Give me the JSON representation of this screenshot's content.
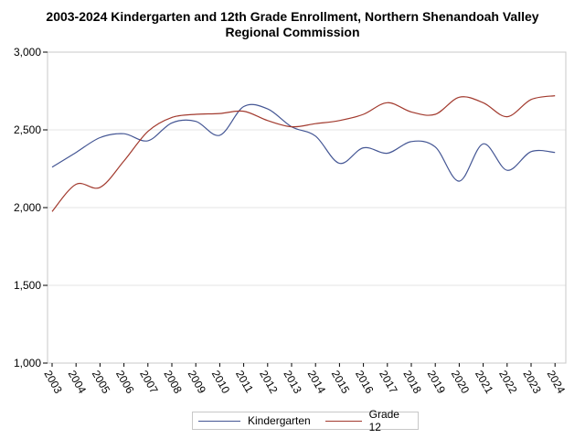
{
  "chart_data": {
    "type": "line",
    "title_lines": [
      "2003-2024 Kindergarten and 12th Grade Enrollment, Northern Shenandoah Valley",
      "Regional Commission"
    ],
    "xlabel": "",
    "ylabel": "",
    "x": [
      "2003",
      "2004",
      "2005",
      "2006",
      "2007",
      "2008",
      "2009",
      "2010",
      "2011",
      "2012",
      "2013",
      "2014",
      "2015",
      "2016",
      "2017",
      "2018",
      "2019",
      "2020",
      "2021",
      "2022",
      "2023",
      "2024"
    ],
    "ylim": [
      1000,
      3000
    ],
    "yticks": [
      1000,
      1500,
      2000,
      2500,
      3000
    ],
    "ytick_labels": [
      "1,000",
      "1,500",
      "2,000",
      "2,500",
      "3,000"
    ],
    "grid": "horizontal",
    "legend_position": "bottom",
    "series": [
      {
        "name": "Kindergarten",
        "color": "#445694",
        "values": [
          2260,
          2355,
          2450,
          2475,
          2430,
          2545,
          2555,
          2465,
          2650,
          2635,
          2520,
          2460,
          2285,
          2385,
          2350,
          2425,
          2390,
          2170,
          2410,
          2240,
          2360,
          2355
        ]
      },
      {
        "name": "Grade 12",
        "color": "#a23a2e",
        "values": [
          1975,
          2150,
          2130,
          2300,
          2490,
          2580,
          2600,
          2605,
          2620,
          2560,
          2520,
          2540,
          2560,
          2600,
          2675,
          2615,
          2600,
          2710,
          2675,
          2585,
          2695,
          2720
        ]
      }
    ]
  }
}
